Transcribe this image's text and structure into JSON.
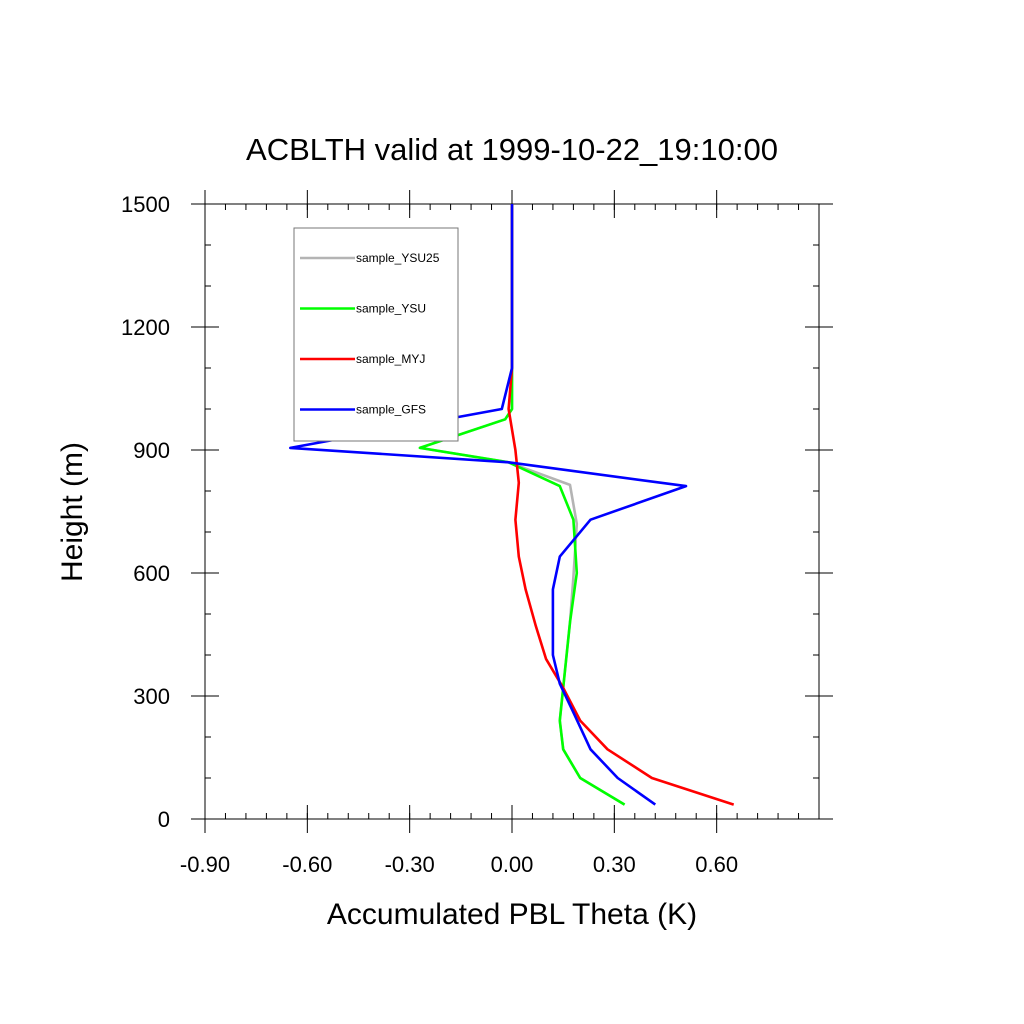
{
  "chart_data": {
    "type": "line",
    "title": "ACBLTH valid at 1999-10-22_19:10:00",
    "xlabel": "Accumulated PBL Theta (K)",
    "ylabel": "Height (m)",
    "xlim": [
      -0.9,
      0.9
    ],
    "ylim": [
      0,
      1500
    ],
    "xticks": [
      -0.9,
      -0.6,
      -0.3,
      0.0,
      0.3,
      0.6
    ],
    "xtick_labels": [
      "-0.90",
      "-0.60",
      "-0.30",
      "0.00",
      "0.30",
      "0.60"
    ],
    "yticks": [
      0,
      300,
      600,
      900,
      1200,
      1500
    ],
    "ytick_labels": [
      "0",
      "300",
      "600",
      "900",
      "1200",
      "1500"
    ],
    "grid": false,
    "legend_position": "top-left",
    "series": [
      {
        "name": "sample_YSU25",
        "color": "#b4b4b4",
        "points": [
          [
            0.33,
            35
          ],
          [
            0.2,
            100
          ],
          [
            0.15,
            170
          ],
          [
            0.14,
            240
          ],
          [
            0.15,
            320
          ],
          [
            0.17,
            480
          ],
          [
            0.18,
            590
          ],
          [
            0.19,
            720
          ],
          [
            0.17,
            815
          ],
          [
            -0.01,
            870
          ],
          [
            -0.27,
            905
          ],
          [
            -0.02,
            975
          ],
          [
            0.0,
            1000
          ],
          [
            0.0,
            1100
          ],
          [
            0.0,
            1200
          ],
          [
            0.0,
            1300
          ],
          [
            0.0,
            1400
          ],
          [
            0.0,
            1500
          ]
        ]
      },
      {
        "name": "sample_YSU",
        "color": "#00ff00",
        "points": [
          [
            0.33,
            35
          ],
          [
            0.2,
            100
          ],
          [
            0.15,
            170
          ],
          [
            0.14,
            240
          ],
          [
            0.15,
            320
          ],
          [
            0.17,
            480
          ],
          [
            0.19,
            600
          ],
          [
            0.18,
            730
          ],
          [
            0.14,
            812
          ],
          [
            -0.01,
            870
          ],
          [
            -0.27,
            905
          ],
          [
            -0.02,
            975
          ],
          [
            0.0,
            1000
          ],
          [
            0.0,
            1100
          ],
          [
            0.0,
            1200
          ],
          [
            0.0,
            1300
          ],
          [
            0.0,
            1400
          ],
          [
            0.0,
            1500
          ]
        ]
      },
      {
        "name": "sample_MYJ",
        "color": "#ff0000",
        "points": [
          [
            0.65,
            35
          ],
          [
            0.41,
            100
          ],
          [
            0.28,
            170
          ],
          [
            0.2,
            240
          ],
          [
            0.15,
            320
          ],
          [
            0.1,
            390
          ],
          [
            0.07,
            470
          ],
          [
            0.04,
            560
          ],
          [
            0.02,
            640
          ],
          [
            0.01,
            730
          ],
          [
            0.02,
            820
          ],
          [
            0.01,
            900
          ],
          [
            -0.01,
            1000
          ],
          [
            0.0,
            1100
          ],
          [
            0.0,
            1200
          ],
          [
            0.0,
            1300
          ],
          [
            0.0,
            1400
          ],
          [
            0.0,
            1500
          ]
        ]
      },
      {
        "name": "sample_GFS",
        "color": "#0000ff",
        "points": [
          [
            0.42,
            35
          ],
          [
            0.31,
            100
          ],
          [
            0.23,
            170
          ],
          [
            0.18,
            260
          ],
          [
            0.14,
            330
          ],
          [
            0.12,
            400
          ],
          [
            0.12,
            470
          ],
          [
            0.12,
            560
          ],
          [
            0.14,
            640
          ],
          [
            0.23,
            730
          ],
          [
            0.51,
            812
          ],
          [
            -0.01,
            870
          ],
          [
            -0.65,
            905
          ],
          [
            -0.03,
            1000
          ],
          [
            0.0,
            1100
          ],
          [
            0.0,
            1200
          ],
          [
            0.0,
            1300
          ],
          [
            0.0,
            1400
          ],
          [
            0.0,
            1500
          ]
        ]
      }
    ]
  }
}
